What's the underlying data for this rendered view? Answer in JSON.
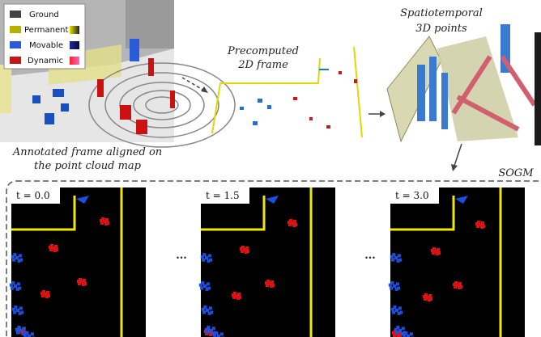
{
  "legend": {
    "items": [
      "Ground",
      "Permanent",
      "Movable",
      "Dynamic"
    ]
  },
  "captions": {
    "annotated": [
      "Annotated frame aligned on",
      "the point cloud map"
    ],
    "precomputed": [
      "Precomputed",
      "2D frame"
    ],
    "spatiotemporal": [
      "Spatiotemporal",
      "3D points"
    ],
    "sogm": "SOGM"
  },
  "panels": [
    {
      "time": "t = 0.0"
    },
    {
      "time": "t = 1.5"
    },
    {
      "time": "t = 3.0"
    }
  ],
  "ellipsis": [
    "...",
    "..."
  ]
}
